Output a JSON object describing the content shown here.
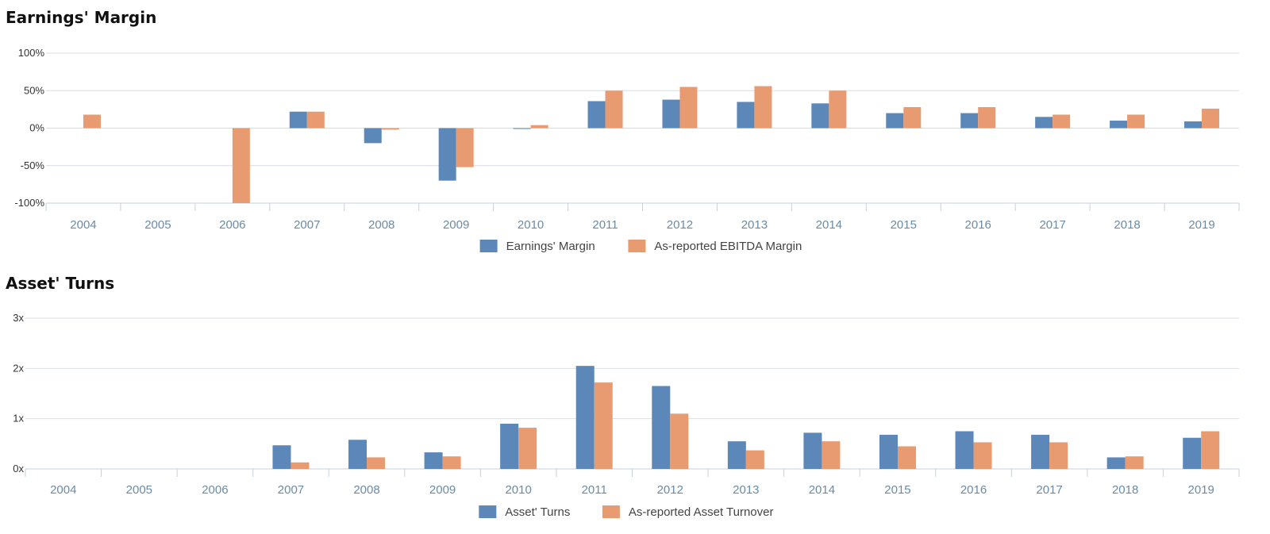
{
  "colors": {
    "series1": "#5b87b9",
    "series2": "#e89b70",
    "grid": "#d9dde3",
    "axis": "#c6d0db"
  },
  "chart_data": [
    {
      "type": "bar",
      "title": "Earnings' Margin",
      "categories": [
        "2004",
        "2005",
        "2006",
        "2007",
        "2008",
        "2009",
        "2010",
        "2011",
        "2012",
        "2013",
        "2014",
        "2015",
        "2016",
        "2017",
        "2018",
        "2019"
      ],
      "yticks": [
        "100%",
        "50%",
        "0%",
        "-50%",
        "-100%"
      ],
      "ylim": [
        -100,
        100
      ],
      "series": [
        {
          "name": "Earnings' Margin",
          "values": [
            null,
            null,
            null,
            22,
            -20,
            -70,
            -1,
            36,
            38,
            35,
            33,
            20,
            20,
            15,
            10,
            9
          ]
        },
        {
          "name": "As-reported EBITDA Margin",
          "values": [
            18,
            null,
            -100,
            22,
            -2,
            -52,
            4,
            50,
            55,
            56,
            50,
            28,
            28,
            18,
            18,
            26
          ]
        }
      ],
      "legend": "bottom-center",
      "grid": true
    },
    {
      "type": "bar",
      "title": "Asset' Turns",
      "categories": [
        "2004",
        "2005",
        "2006",
        "2007",
        "2008",
        "2009",
        "2010",
        "2011",
        "2012",
        "2013",
        "2014",
        "2015",
        "2016",
        "2017",
        "2018",
        "2019"
      ],
      "yticks": [
        "3x",
        "2x",
        "1x",
        "0x"
      ],
      "ylim": [
        0,
        3
      ],
      "series": [
        {
          "name": "Asset' Turns",
          "values": [
            null,
            null,
            null,
            0.47,
            0.58,
            0.33,
            0.9,
            2.05,
            1.65,
            0.55,
            0.72,
            0.68,
            0.75,
            0.68,
            0.23,
            0.62
          ]
        },
        {
          "name": "As-reported Asset Turnover",
          "values": [
            null,
            null,
            null,
            0.13,
            0.23,
            0.25,
            0.82,
            1.72,
            1.1,
            0.37,
            0.55,
            0.45,
            0.53,
            0.53,
            0.25,
            0.75
          ]
        }
      ],
      "legend": "bottom-center",
      "grid": true
    }
  ]
}
